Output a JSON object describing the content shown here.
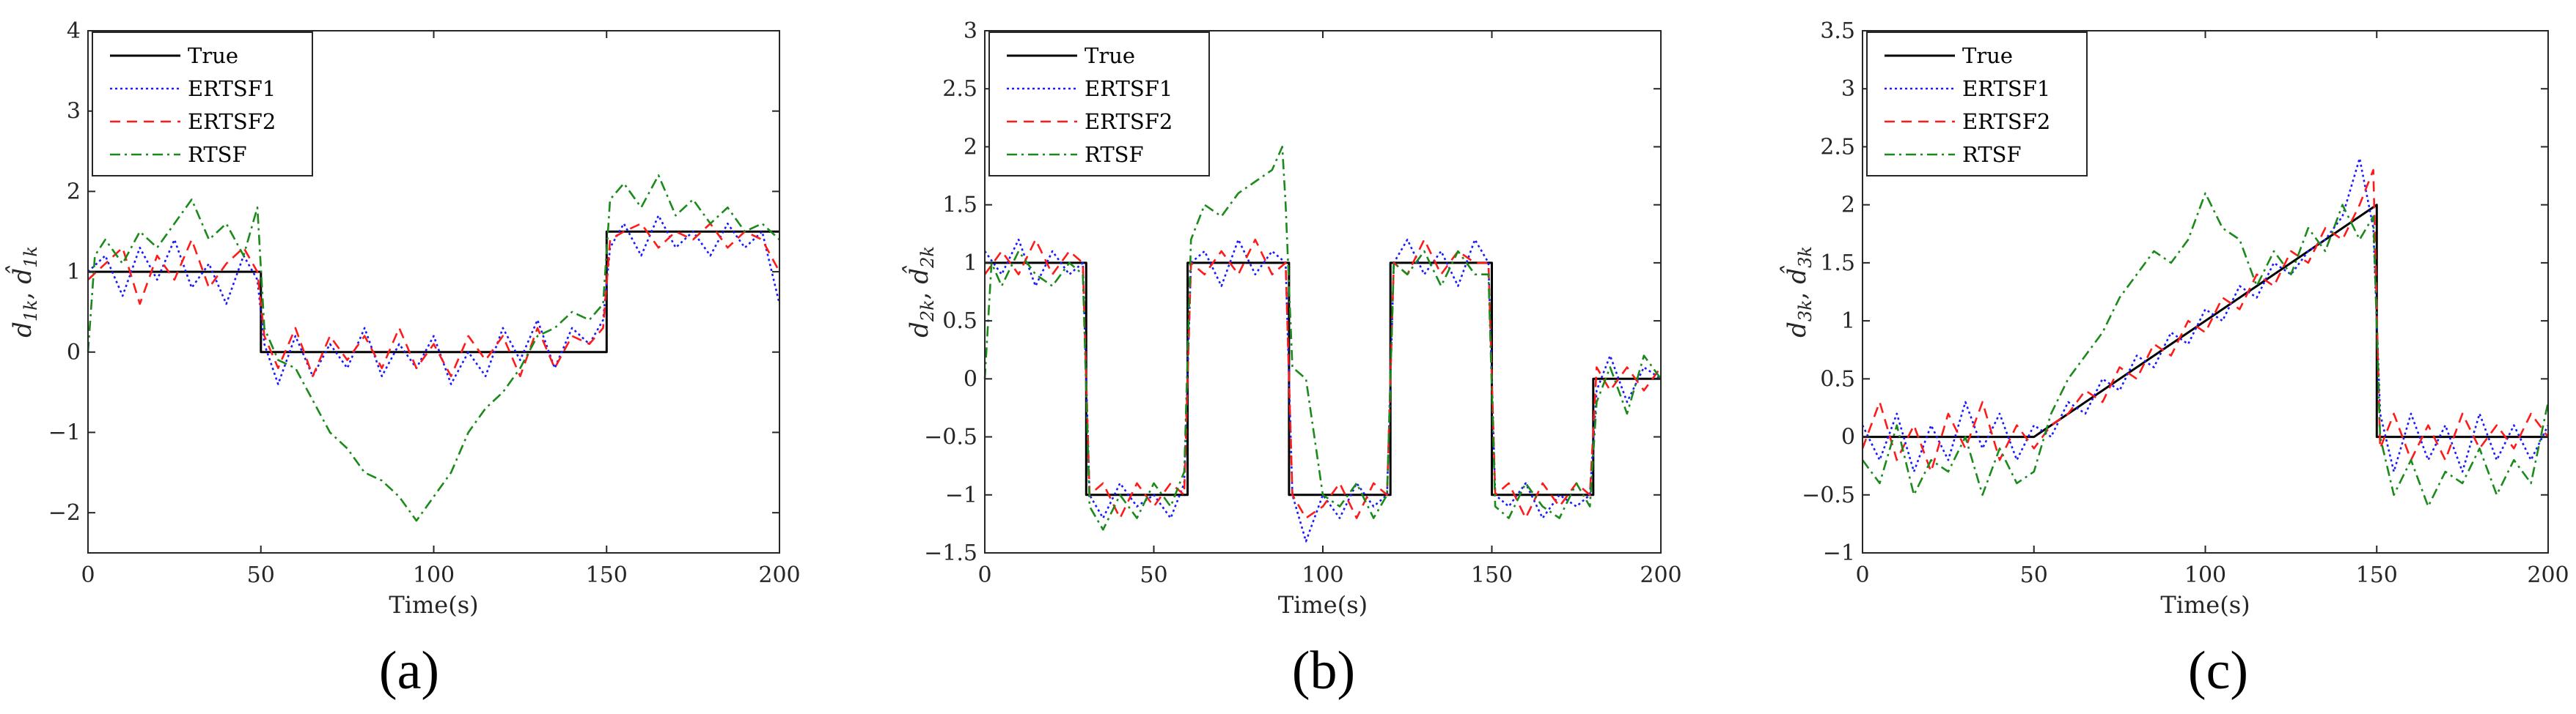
{
  "figure_captions": [
    "(a)",
    "(b)",
    "(c)"
  ],
  "series_styles": [
    {
      "name": "True",
      "color": "#000000",
      "dash": ""
    },
    {
      "name": "ERTSF1",
      "color": "#1a1aff",
      "dash": "3,4"
    },
    {
      "name": "ERTSF2",
      "color": "#ff1a1a",
      "dash": "14,9"
    },
    {
      "name": "RTSF",
      "color": "#1a8a1a",
      "dash": "14,6,3,6"
    }
  ],
  "chart_data": [
    {
      "type": "line",
      "panel": "a",
      "caption": "(a)",
      "xlabel": "Time(s)",
      "ylabel": "d1k, d̂1k",
      "ylabel_parts": {
        "a": "d",
        "a_sub": "1k",
        "sep": ",",
        "b": "d",
        "b_sub": "1k"
      },
      "xlim": [
        0,
        200
      ],
      "ylim": [
        -2.5,
        4
      ],
      "xticks": [
        0,
        50,
        100,
        150,
        200
      ],
      "yticks": [
        -2,
        -1,
        0,
        1,
        2,
        3,
        4
      ],
      "xtick_labels": [
        "0",
        "50",
        "100",
        "150",
        "200"
      ],
      "ytick_labels": [
        "−2",
        "−1",
        "0",
        "1",
        "2",
        "3",
        "4"
      ],
      "legend": [
        "True",
        "ERTSF1",
        "ERTSF2",
        "RTSF"
      ],
      "legend_position": "top-left",
      "series": [
        {
          "name": "True",
          "x": [
            0,
            50,
            50,
            150,
            150,
            200
          ],
          "y": [
            1,
            1,
            0,
            0,
            1.5,
            1.5
          ]
        },
        {
          "name": "ERTSF1",
          "x": [
            0,
            5,
            10,
            15,
            20,
            25,
            30,
            35,
            40,
            45,
            49,
            51,
            55,
            60,
            65,
            70,
            75,
            80,
            85,
            90,
            95,
            100,
            105,
            110,
            115,
            120,
            125,
            130,
            135,
            140,
            145,
            149,
            151,
            155,
            160,
            165,
            170,
            175,
            180,
            185,
            190,
            195,
            200
          ],
          "y": [
            1.0,
            1.2,
            0.7,
            1.3,
            0.9,
            1.4,
            0.8,
            1.1,
            0.6,
            1.2,
            0.9,
            0.1,
            -0.4,
            0.2,
            -0.3,
            0.1,
            -0.2,
            0.3,
            -0.3,
            0.1,
            -0.2,
            0.2,
            -0.4,
            0.0,
            -0.3,
            0.3,
            -0.1,
            0.4,
            -0.2,
            0.3,
            0.1,
            0.4,
            1.3,
            1.6,
            1.2,
            1.7,
            1.3,
            1.5,
            1.2,
            1.6,
            1.3,
            1.5,
            0.6
          ]
        },
        {
          "name": "ERTSF2",
          "x": [
            0,
            5,
            10,
            15,
            20,
            25,
            30,
            35,
            40,
            45,
            49,
            51,
            55,
            60,
            65,
            70,
            75,
            80,
            85,
            90,
            95,
            100,
            105,
            110,
            115,
            120,
            125,
            130,
            135,
            140,
            145,
            149,
            151,
            155,
            160,
            165,
            170,
            175,
            180,
            185,
            190,
            195,
            200
          ],
          "y": [
            0.9,
            1.1,
            1.3,
            0.6,
            1.2,
            0.9,
            1.4,
            0.8,
            1.1,
            1.3,
            1.0,
            0.2,
            -0.2,
            0.3,
            -0.3,
            0.2,
            -0.1,
            0.2,
            -0.2,
            0.3,
            -0.2,
            0.1,
            -0.3,
            0.2,
            -0.1,
            0.2,
            -0.3,
            0.3,
            -0.2,
            0.2,
            0.1,
            0.3,
            1.4,
            1.5,
            1.6,
            1.3,
            1.5,
            1.4,
            1.6,
            1.3,
            1.5,
            1.4,
            1.0
          ]
        },
        {
          "name": "RTSF",
          "x": [
            0,
            2,
            5,
            10,
            15,
            20,
            25,
            30,
            35,
            40,
            45,
            49,
            51,
            55,
            60,
            65,
            70,
            75,
            80,
            85,
            90,
            95,
            100,
            105,
            110,
            115,
            120,
            125,
            130,
            135,
            140,
            145,
            149,
            151,
            155,
            160,
            165,
            170,
            175,
            180,
            185,
            190,
            195,
            200
          ],
          "y": [
            0.0,
            1.2,
            1.4,
            1.1,
            1.5,
            1.3,
            1.6,
            1.9,
            1.4,
            1.6,
            1.2,
            1.8,
            0.3,
            -0.1,
            -0.2,
            -0.6,
            -1.0,
            -1.2,
            -1.5,
            -1.6,
            -1.8,
            -2.1,
            -1.8,
            -1.5,
            -1.0,
            -0.7,
            -0.5,
            -0.2,
            0.2,
            0.3,
            0.5,
            0.4,
            0.6,
            1.9,
            2.1,
            1.8,
            2.2,
            1.7,
            1.9,
            1.6,
            1.8,
            1.5,
            1.6,
            1.4
          ]
        }
      ]
    },
    {
      "type": "line",
      "panel": "b",
      "caption": "(b)",
      "xlabel": "Time(s)",
      "ylabel": "d2k, d̂2k",
      "ylabel_parts": {
        "a": "d",
        "a_sub": "2k",
        "sep": ",",
        "b": "d",
        "b_sub": "2k"
      },
      "xlim": [
        0,
        200
      ],
      "ylim": [
        -1.5,
        3
      ],
      "xticks": [
        0,
        50,
        100,
        150,
        200
      ],
      "yticks": [
        -1.5,
        -1,
        -0.5,
        0,
        0.5,
        1,
        1.5,
        2,
        2.5,
        3
      ],
      "xtick_labels": [
        "0",
        "50",
        "100",
        "150",
        "200"
      ],
      "ytick_labels": [
        "−1.5",
        "−1",
        "−0.5",
        "0",
        "0.5",
        "1",
        "1.5",
        "2",
        "2.5",
        "3"
      ],
      "legend": [
        "True",
        "ERTSF1",
        "ERTSF2",
        "RTSF"
      ],
      "legend_position": "top-left",
      "series": [
        {
          "name": "True",
          "x": [
            0,
            30,
            30,
            60,
            60,
            90,
            90,
            120,
            120,
            150,
            150,
            180,
            180,
            200
          ],
          "y": [
            1,
            1,
            -1,
            -1,
            1,
            1,
            -1,
            -1,
            1,
            1,
            -1,
            -1,
            0,
            0
          ]
        },
        {
          "name": "ERTSF1",
          "x": [
            0,
            5,
            10,
            15,
            20,
            25,
            29,
            31,
            35,
            40,
            45,
            50,
            55,
            59,
            61,
            65,
            70,
            75,
            80,
            85,
            89,
            91,
            95,
            100,
            105,
            110,
            115,
            119,
            121,
            125,
            130,
            135,
            140,
            145,
            149,
            151,
            155,
            160,
            165,
            170,
            175,
            179,
            181,
            185,
            190,
            195,
            200
          ],
          "y": [
            1.1,
            0.9,
            1.2,
            0.8,
            1.1,
            0.9,
            1.0,
            -1.0,
            -1.2,
            -0.9,
            -1.1,
            -1.0,
            -1.2,
            -0.9,
            1.0,
            1.1,
            0.8,
            1.2,
            0.9,
            1.1,
            1.0,
            -1.0,
            -1.4,
            -1.0,
            -1.2,
            -0.9,
            -1.1,
            -1.0,
            1.0,
            1.2,
            0.9,
            1.1,
            0.8,
            1.2,
            1.0,
            -1.0,
            -1.1,
            -0.9,
            -1.2,
            -1.0,
            -1.1,
            -1.0,
            -0.1,
            0.2,
            -0.2,
            0.1,
            0.0
          ]
        },
        {
          "name": "ERTSF2",
          "x": [
            0,
            5,
            10,
            15,
            20,
            25,
            29,
            31,
            35,
            40,
            45,
            50,
            55,
            59,
            61,
            65,
            70,
            75,
            80,
            85,
            89,
            91,
            95,
            100,
            105,
            110,
            115,
            119,
            121,
            125,
            130,
            135,
            140,
            145,
            149,
            151,
            155,
            160,
            165,
            170,
            175,
            179,
            181,
            185,
            190,
            195,
            200
          ],
          "y": [
            0.9,
            1.1,
            0.9,
            1.2,
            0.9,
            1.1,
            1.0,
            -1.0,
            -0.9,
            -1.2,
            -0.9,
            -1.1,
            -0.9,
            -1.0,
            1.0,
            0.9,
            1.1,
            0.9,
            1.2,
            0.9,
            1.0,
            -1.0,
            -1.2,
            -1.1,
            -0.9,
            -1.2,
            -0.9,
            -1.0,
            1.0,
            0.9,
            1.2,
            0.9,
            1.1,
            1.0,
            1.0,
            -1.0,
            -0.9,
            -1.2,
            -0.9,
            -1.1,
            -0.9,
            -1.0,
            0.1,
            -0.1,
            0.1,
            -0.1,
            0.1
          ]
        },
        {
          "name": "RTSF",
          "x": [
            0,
            2,
            5,
            10,
            15,
            20,
            25,
            29,
            31,
            35,
            40,
            45,
            50,
            55,
            59,
            61,
            65,
            70,
            75,
            80,
            85,
            88,
            89,
            91,
            95,
            100,
            105,
            110,
            115,
            119,
            121,
            125,
            130,
            135,
            140,
            145,
            149,
            151,
            155,
            160,
            165,
            170,
            175,
            179,
            181,
            185,
            190,
            195,
            200
          ],
          "y": [
            0.0,
            1.0,
            0.8,
            1.1,
            0.9,
            0.8,
            1.0,
            0.9,
            -1.1,
            -1.3,
            -1.0,
            -1.2,
            -0.9,
            -1.1,
            -0.8,
            1.2,
            1.5,
            1.4,
            1.6,
            1.7,
            1.8,
            2.0,
            1.5,
            0.1,
            0.0,
            -1.0,
            -1.1,
            -0.9,
            -1.2,
            -1.0,
            1.0,
            0.9,
            1.1,
            0.8,
            1.1,
            0.9,
            0.9,
            -1.1,
            -1.2,
            -0.9,
            -1.1,
            -1.2,
            -0.9,
            -1.1,
            -0.2,
            0.1,
            -0.3,
            0.2,
            0.0
          ]
        }
      ]
    },
    {
      "type": "line",
      "panel": "c",
      "caption": "(c)",
      "xlabel": "Time(s)",
      "ylabel": "d3k, d̂3k",
      "ylabel_parts": {
        "a": "d",
        "a_sub": "3k",
        "sep": ",",
        "b": "d",
        "b_sub": "3k"
      },
      "xlim": [
        0,
        200
      ],
      "ylim": [
        -1,
        3.5
      ],
      "xticks": [
        0,
        50,
        100,
        150,
        200
      ],
      "yticks": [
        -1,
        -0.5,
        0,
        0.5,
        1,
        1.5,
        2,
        2.5,
        3,
        3.5
      ],
      "xtick_labels": [
        "0",
        "50",
        "100",
        "150",
        "200"
      ],
      "ytick_labels": [
        "−1",
        "−0.5",
        "0",
        "0.5",
        "1",
        "1.5",
        "2",
        "2.5",
        "3",
        "3.5"
      ],
      "legend": [
        "True",
        "ERTSF1",
        "ERTSF2",
        "RTSF"
      ],
      "legend_position": "top-left",
      "series": [
        {
          "name": "True",
          "x": [
            0,
            50,
            150,
            150,
            200
          ],
          "y": [
            0,
            0,
            2,
            0,
            0
          ]
        },
        {
          "name": "ERTSF1",
          "x": [
            0,
            5,
            10,
            15,
            20,
            25,
            30,
            35,
            40,
            45,
            50,
            55,
            60,
            65,
            70,
            75,
            80,
            85,
            90,
            95,
            100,
            105,
            110,
            115,
            120,
            125,
            130,
            135,
            140,
            145,
            149,
            151,
            155,
            160,
            165,
            170,
            175,
            180,
            185,
            190,
            195,
            200
          ],
          "y": [
            0.1,
            -0.2,
            0.2,
            -0.3,
            0.1,
            -0.2,
            0.3,
            -0.1,
            0.2,
            -0.2,
            0.1,
            0.0,
            0.3,
            0.2,
            0.5,
            0.4,
            0.7,
            0.6,
            0.9,
            0.8,
            1.1,
            1.0,
            1.3,
            1.2,
            1.5,
            1.4,
            1.6,
            1.7,
            1.9,
            2.4,
            1.8,
            0.2,
            -0.3,
            0.2,
            -0.2,
            0.1,
            -0.3,
            0.2,
            -0.2,
            0.1,
            -0.2,
            0.1
          ]
        },
        {
          "name": "ERTSF2",
          "x": [
            0,
            5,
            10,
            15,
            20,
            25,
            30,
            35,
            40,
            45,
            50,
            55,
            60,
            65,
            70,
            75,
            80,
            85,
            90,
            95,
            100,
            105,
            110,
            115,
            120,
            125,
            130,
            135,
            140,
            145,
            149,
            151,
            155,
            160,
            165,
            170,
            175,
            180,
            185,
            190,
            195,
            200
          ],
          "y": [
            -0.1,
            0.3,
            -0.2,
            0.1,
            -0.3,
            0.2,
            -0.1,
            0.3,
            -0.2,
            0.1,
            -0.1,
            0.1,
            0.2,
            0.4,
            0.3,
            0.6,
            0.5,
            0.8,
            0.7,
            1.0,
            0.9,
            1.2,
            1.1,
            1.4,
            1.3,
            1.6,
            1.5,
            1.8,
            1.7,
            2.0,
            2.3,
            -0.1,
            0.2,
            -0.2,
            0.1,
            -0.2,
            0.2,
            -0.1,
            0.1,
            -0.1,
            0.2,
            0.0
          ]
        },
        {
          "name": "RTSF",
          "x": [
            0,
            5,
            10,
            15,
            20,
            25,
            30,
            35,
            40,
            45,
            50,
            55,
            60,
            65,
            70,
            75,
            80,
            85,
            90,
            95,
            100,
            105,
            110,
            115,
            120,
            125,
            130,
            135,
            140,
            145,
            149,
            151,
            155,
            160,
            165,
            170,
            175,
            180,
            185,
            190,
            195,
            200
          ],
          "y": [
            -0.2,
            -0.4,
            0.1,
            -0.5,
            -0.2,
            -0.3,
            0.0,
            -0.5,
            -0.1,
            -0.4,
            -0.3,
            0.2,
            0.5,
            0.7,
            0.9,
            1.2,
            1.4,
            1.6,
            1.5,
            1.7,
            2.1,
            1.8,
            1.7,
            1.3,
            1.6,
            1.4,
            1.8,
            1.6,
            2.0,
            1.7,
            1.9,
            0.0,
            -0.5,
            -0.2,
            -0.6,
            -0.3,
            -0.4,
            -0.1,
            -0.5,
            -0.2,
            -0.4,
            0.3
          ]
        }
      ]
    }
  ]
}
